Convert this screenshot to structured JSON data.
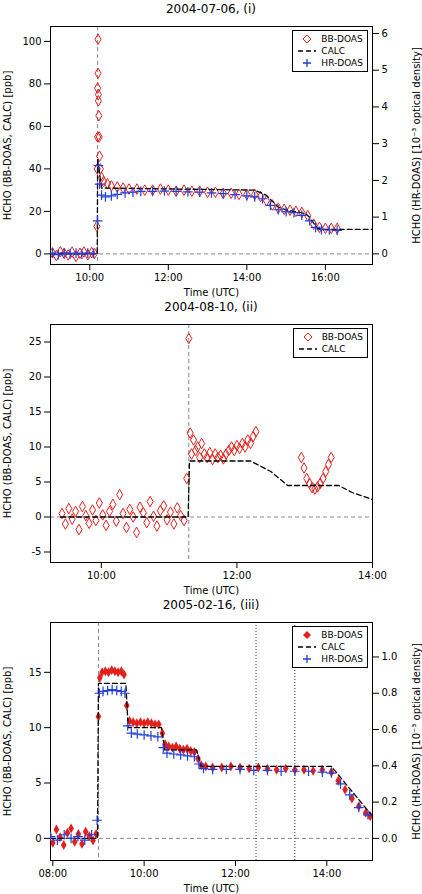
{
  "chart_data": [
    {
      "type": "scatter",
      "title": "2004-07-06, (i)",
      "x_label": "Time (UTC)",
      "y_label": "HCHO (BB-DOAS, CALC) [ppb]",
      "y2_label": "HCHO (HR-DOAS) [10⁻³ optical density]",
      "xlim": [
        9,
        17.2
      ],
      "xticks": [
        {
          "value": 10,
          "label": "10:00"
        },
        {
          "value": 12,
          "label": "12:00"
        },
        {
          "value": 14,
          "label": "14:00"
        },
        {
          "value": 16,
          "label": "16:00"
        }
      ],
      "ylim": [
        -5,
        107
      ],
      "yticks": [
        0,
        20,
        40,
        60,
        80,
        100
      ],
      "y2lim": [
        -0.29,
        6.19
      ],
      "y2ticks": [
        0,
        1,
        2,
        3,
        4,
        5,
        6
      ],
      "legend": "top-right",
      "vlines": [
        10.2
      ],
      "hlines": [
        0
      ],
      "series": [
        {
          "name": "BB-DOAS",
          "type": "scatter",
          "marker": "diamond-open",
          "color": "#e3211c",
          "x": [
            9.05,
            9.15,
            9.25,
            9.35,
            9.45,
            9.55,
            9.65,
            9.75,
            9.85,
            9.95,
            10.05,
            10.12,
            10.18,
            10.19,
            10.2,
            10.2,
            10.21,
            10.21,
            10.22,
            10.22,
            10.23,
            10.24,
            10.25,
            10.27,
            10.3,
            10.35,
            10.45,
            10.55,
            10.7,
            10.85,
            11.0,
            11.2,
            11.4,
            11.6,
            11.8,
            12.0,
            12.2,
            12.4,
            12.6,
            12.8,
            13.0,
            13.2,
            13.4,
            13.6,
            13.8,
            14.0,
            14.2,
            14.35,
            14.5,
            14.65,
            14.8,
            14.95,
            15.1,
            15.25,
            15.4,
            15.55,
            15.7,
            15.85,
            16.0,
            16.15,
            16.3
          ],
          "values": [
            0.5,
            -0.8,
            1.0,
            0.2,
            -0.5,
            0.8,
            -1.2,
            0.3,
            0.9,
            -0.4,
            0.6,
            0.2,
            13,
            40,
            55,
            78,
            101,
            85,
            75,
            72,
            65,
            55,
            46,
            40,
            36,
            34,
            33,
            32,
            31.5,
            31,
            30.5,
            30.5,
            30,
            30,
            30.5,
            30,
            29.5,
            30,
            29.5,
            29.5,
            29,
            29,
            28.5,
            28.5,
            28,
            28,
            28,
            27,
            25,
            23,
            21.5,
            21,
            20.5,
            20,
            19.5,
            18,
            14,
            12.5,
            12,
            12,
            12
          ]
        },
        {
          "name": "CALC",
          "type": "line",
          "line_style": "dashed",
          "color": "#000000",
          "x": [
            9,
            10.19,
            10.2,
            10.3,
            14.2,
            14.5,
            14.8,
            14.95,
            15.2,
            15.5,
            15.6,
            15.8,
            16.0,
            17.2
          ],
          "values": [
            0,
            0,
            45,
            31,
            30,
            27.5,
            22,
            21,
            20,
            19,
            17,
            12,
            11.5,
            11.5
          ]
        },
        {
          "name": "HR-DOAS",
          "type": "scatter",
          "marker": "plus",
          "color": "#1f3fd9",
          "axis": "y2",
          "x": [
            9.05,
            9.2,
            9.35,
            9.5,
            9.65,
            9.8,
            9.95,
            10.1,
            10.2,
            10.22,
            10.25,
            10.3,
            10.4,
            10.55,
            10.7,
            10.9,
            11.1,
            11.3,
            11.6,
            11.9,
            12.2,
            12.5,
            12.8,
            13.1,
            13.4,
            13.7,
            14.0,
            14.2,
            14.4,
            14.6,
            14.8,
            15.0,
            15.2,
            15.4,
            15.6,
            15.75,
            15.9,
            16.1,
            16.3
          ],
          "values": [
            0.02,
            -0.02,
            0.03,
            0.0,
            0.02,
            -0.01,
            0.02,
            0.01,
            0.9,
            2.4,
            1.9,
            1.6,
            1.55,
            1.58,
            1.62,
            1.66,
            1.68,
            1.7,
            1.7,
            1.71,
            1.7,
            1.69,
            1.68,
            1.66,
            1.64,
            1.61,
            1.58,
            1.55,
            1.5,
            1.32,
            1.2,
            1.15,
            1.12,
            1.05,
            0.9,
            0.72,
            0.66,
            0.65,
            0.64
          ]
        }
      ]
    },
    {
      "type": "scatter",
      "title": "2004-08-10, (ii)",
      "x_label": "Time (UTC)",
      "y_label": "HCHO (BB-DOAS, CALC) [ppb]",
      "xlim": [
        9.25,
        14.0
      ],
      "xticks": [
        {
          "value": 10,
          "label": "10:00"
        },
        {
          "value": 12,
          "label": "12:00"
        },
        {
          "value": 14,
          "label": "14:00"
        }
      ],
      "ylim": [
        -6.5,
        27.5
      ],
      "yticks": [
        -5,
        0,
        5,
        10,
        15,
        20,
        25
      ],
      "legend": "top-right",
      "vlines": [
        11.29
      ],
      "hlines": [
        0
      ],
      "series": [
        {
          "name": "BB-DOAS",
          "type": "scatter",
          "marker": "diamond-open",
          "color": "#e3211c",
          "x": [
            9.42,
            9.47,
            9.52,
            9.57,
            9.62,
            9.67,
            9.72,
            9.77,
            9.82,
            9.87,
            9.92,
            9.97,
            10.02,
            10.07,
            10.12,
            10.17,
            10.22,
            10.27,
            10.32,
            10.37,
            10.42,
            10.47,
            10.52,
            10.57,
            10.62,
            10.67,
            10.72,
            10.77,
            10.82,
            10.87,
            10.92,
            10.97,
            11.02,
            11.07,
            11.12,
            11.17,
            11.22,
            11.26,
            11.29,
            11.31,
            11.33,
            11.36,
            11.39,
            11.42,
            11.45,
            11.48,
            11.52,
            11.56,
            11.6,
            11.64,
            11.68,
            11.72,
            11.76,
            11.8,
            11.84,
            11.88,
            11.92,
            11.96,
            12.0,
            12.04,
            12.08,
            12.12,
            12.16,
            12.2,
            12.24,
            12.28,
            12.95,
            12.99,
            13.03,
            13.07,
            13.11,
            13.15,
            13.19,
            13.23,
            13.27,
            13.31,
            13.35,
            13.39
          ],
          "values": [
            0.5,
            -1,
            1.2,
            -0.3,
            0.8,
            -1.8,
            1.5,
            0.2,
            -0.9,
            1.0,
            -0.5,
            2.0,
            0.3,
            -1.2,
            0.8,
            1.8,
            -0.6,
            3.2,
            0.5,
            -1.5,
            1.1,
            0.0,
            -2.2,
            1.4,
            0.6,
            -0.8,
            2.2,
            0.1,
            -1.3,
            0.9,
            1.6,
            -0.4,
            0.7,
            -1.0,
            1.3,
            0.2,
            -0.5,
            5.5,
            25.5,
            12,
            9,
            11,
            9.5,
            10,
            8.5,
            10.5,
            9,
            8.5,
            9.2,
            8.2,
            9,
            8.5,
            8.8,
            8.3,
            9,
            9.5,
            10,
            9.5,
            10.2,
            9.8,
            10.5,
            10,
            11,
            10.5,
            11.5,
            12.2,
            8.5,
            7,
            5.5,
            4.8,
            4.2,
            4,
            4.3,
            4.8,
            5.5,
            6.5,
            7.5,
            8.5
          ]
        },
        {
          "name": "CALC",
          "type": "line",
          "line_style": "dashed",
          "color": "#000000",
          "x": [
            9.4,
            11.28,
            11.3,
            12.2,
            12.5,
            12.75,
            13.5,
            13.7,
            14.0
          ],
          "values": [
            0,
            0,
            8,
            8,
            6.5,
            4.5,
            4.5,
            3.5,
            2.5
          ]
        }
      ]
    },
    {
      "type": "scatter",
      "title": "2005-02-16, (iii)",
      "x_label": "Time (UTC)",
      "y_label": "HCHO (BB-DOAS, CALC) [ppb]",
      "y2_label": "HCHO (HR-DOAS) [10⁻³ optical density]",
      "xlim": [
        7.95,
        15
      ],
      "xticks": [
        {
          "value": 8,
          "label": "08:00"
        },
        {
          "value": 10,
          "label": "10:00"
        },
        {
          "value": 12,
          "label": "12:00"
        },
        {
          "value": 14,
          "label": "14:00"
        }
      ],
      "ylim": [
        -2,
        19.5
      ],
      "yticks": [
        0,
        5,
        10,
        15
      ],
      "y2lim": [
        -0.122,
        1.19
      ],
      "y2ticks": [
        {
          "value": 0,
          "label": "0.0"
        },
        0.2,
        0.4,
        0.6,
        0.8,
        {
          "value": 1,
          "label": "1.0"
        }
      ],
      "legend": "top-right",
      "vlines": [
        9.0
      ],
      "vlines_dotted": [
        12.45,
        13.3
      ],
      "hlines": [
        0
      ],
      "series": [
        {
          "name": "BB-DOAS",
          "type": "scatter",
          "marker": "diamond",
          "color": "#e3211c",
          "x": [
            7.92,
            8.0,
            8.08,
            8.16,
            8.24,
            8.32,
            8.4,
            8.48,
            8.56,
            8.64,
            8.72,
            8.8,
            8.88,
            8.95,
            9.0,
            9.03,
            9.08,
            9.15,
            9.22,
            9.29,
            9.36,
            9.43,
            9.5,
            9.56,
            9.62,
            9.68,
            9.76,
            9.84,
            9.92,
            10.0,
            10.08,
            10.16,
            10.24,
            10.32,
            10.4,
            10.46,
            10.54,
            10.62,
            10.7,
            10.78,
            10.86,
            10.94,
            11.02,
            11.1,
            11.18,
            11.25,
            11.35,
            11.5,
            11.7,
            11.9,
            12.1,
            12.3,
            12.5,
            12.7,
            12.9,
            13.1,
            13.3,
            13.5,
            13.7,
            13.9,
            14.1,
            14.25,
            14.4,
            14.55,
            14.7,
            14.85,
            14.95
          ],
          "values": [
            0.3,
            -0.4,
            0.8,
            0.1,
            -0.6,
            0.5,
            0.9,
            -0.3,
            0.4,
            -0.5,
            0.6,
            0.2,
            -0.2,
            0.4,
            11,
            14.5,
            15,
            15.1,
            15,
            15.2,
            15.1,
            15,
            15.1,
            14.8,
            12,
            10.6,
            10.5,
            10.4,
            10.5,
            10.4,
            10.5,
            10.4,
            10.3,
            10.3,
            9.5,
            8.5,
            8.3,
            8.2,
            8.3,
            8.1,
            8.0,
            8.1,
            7.9,
            7.8,
            7.2,
            6.6,
            6.5,
            6.4,
            6.4,
            6.5,
            6.4,
            6.3,
            6.4,
            6.3,
            6.2,
            6.3,
            6.2,
            6.2,
            6.1,
            6.2,
            6.0,
            5.2,
            4.4,
            3.6,
            2.9,
            2.3,
            2.0
          ]
        },
        {
          "name": "CALC",
          "type": "line",
          "line_style": "dashed",
          "color": "#000000",
          "x": [
            7.95,
            8.98,
            9.0,
            9.6,
            9.65,
            10.38,
            10.45,
            11.15,
            11.25,
            14.1,
            15
          ],
          "values": [
            0,
            0,
            14,
            14,
            10,
            10,
            8,
            8,
            6.5,
            6.5,
            2
          ]
        },
        {
          "name": "HR-DOAS",
          "type": "scatter",
          "marker": "plus",
          "color": "#1f3fd9",
          "axis": "y2",
          "x": [
            7.95,
            8.1,
            8.25,
            8.4,
            8.55,
            8.7,
            8.85,
            8.97,
            9.02,
            9.1,
            9.2,
            9.3,
            9.4,
            9.5,
            9.58,
            9.64,
            9.72,
            9.85,
            10.0,
            10.15,
            10.3,
            10.42,
            10.5,
            10.65,
            10.8,
            10.95,
            11.1,
            11.2,
            11.3,
            11.5,
            11.8,
            12.1,
            12.4,
            12.7,
            13.0,
            13.3,
            13.6,
            13.9,
            14.1,
            14.3,
            14.5,
            14.7,
            14.9
          ],
          "values": [
            0.01,
            -0.01,
            0.02,
            0.0,
            0.01,
            -0.01,
            0.02,
            0.1,
            0.8,
            0.81,
            0.815,
            0.82,
            0.815,
            0.81,
            0.8,
            0.62,
            0.58,
            0.575,
            0.57,
            0.565,
            0.56,
            0.5,
            0.47,
            0.465,
            0.46,
            0.455,
            0.45,
            0.41,
            0.385,
            0.38,
            0.38,
            0.38,
            0.375,
            0.375,
            0.37,
            0.37,
            0.37,
            0.365,
            0.36,
            0.3,
            0.24,
            0.17,
            0.13
          ]
        }
      ]
    }
  ]
}
